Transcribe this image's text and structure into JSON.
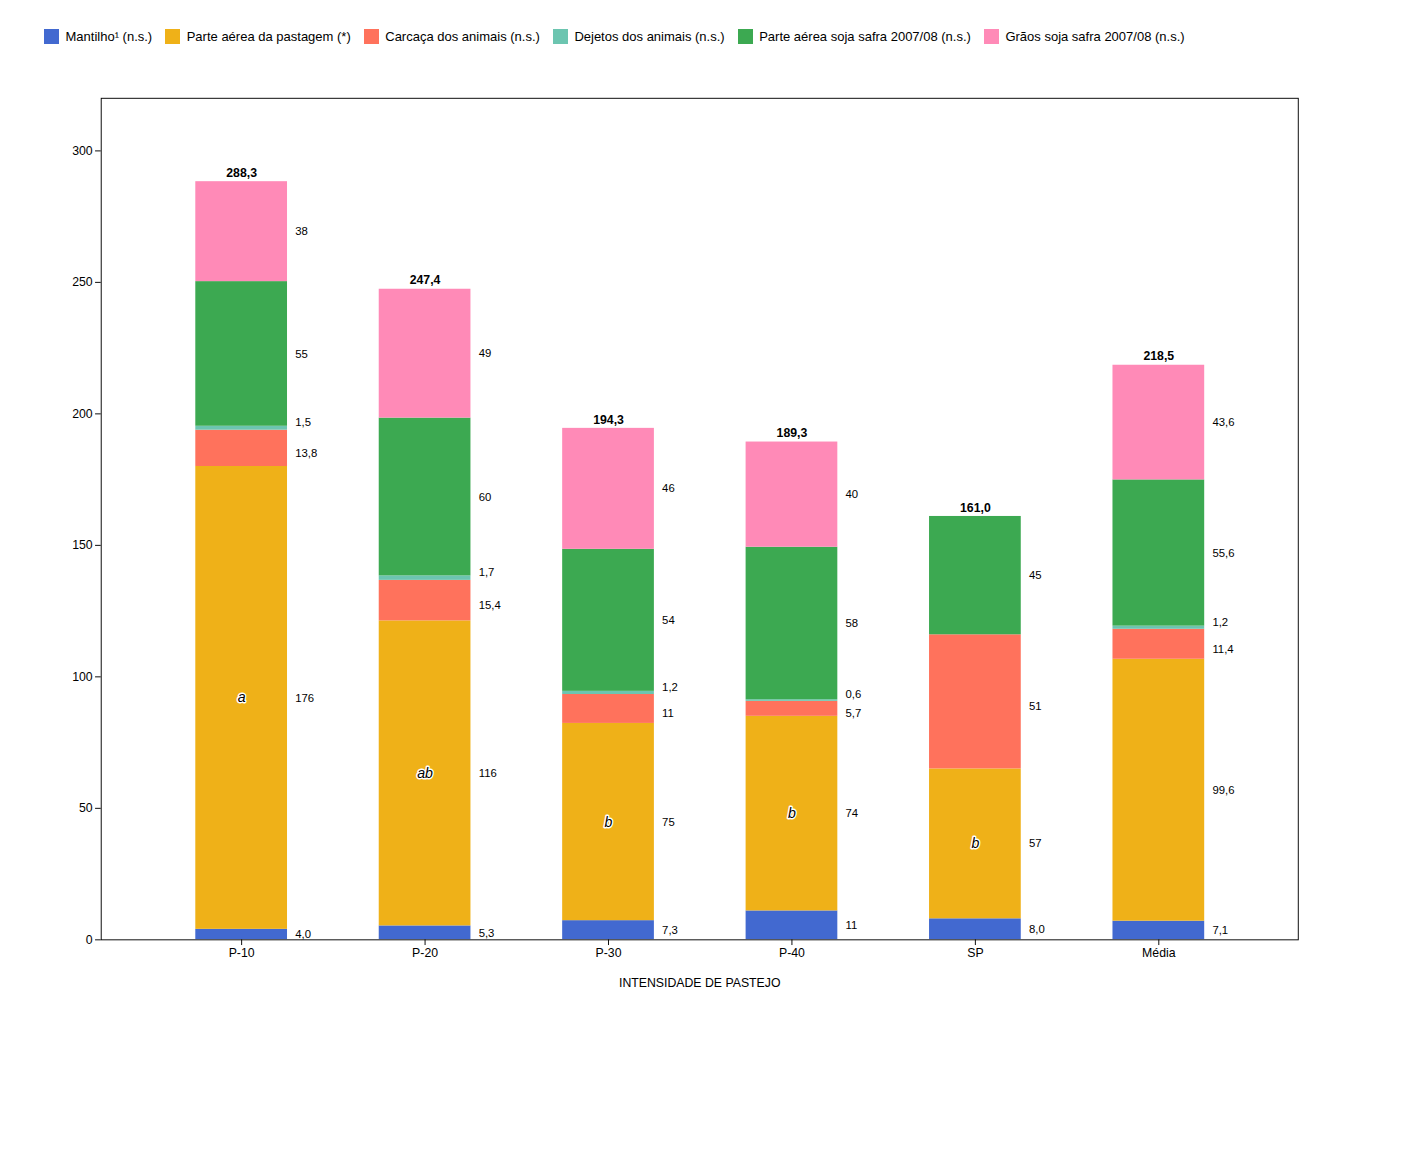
{
  "chart_data": {
    "type": "bar",
    "stacked": true,
    "data_labels": true,
    "grid": false,
    "xlabel": "INTENSIDADE DE PASTEJO",
    "categories": [
      "P-10",
      "P-20",
      "P-30",
      "P-40",
      "SP",
      "Média"
    ],
    "series": [
      {
        "name": "Mantilho¹ (n.s.)",
        "values": [
          4.0,
          5.3,
          7.3,
          11.0,
          8.0,
          7.1
        ],
        "value_labels": [
          "4,0",
          "5,3",
          "7,3",
          "11",
          "8,0",
          "7,1"
        ]
      },
      {
        "name": "Parte aérea da pastagem (*)",
        "values": [
          176.0,
          116.0,
          75.0,
          74.0,
          57.0,
          99.6
        ],
        "value_labels": [
          "176",
          "116",
          "75",
          "74",
          "57",
          "99,6"
        ],
        "inside_labels": [
          "a",
          "ab",
          "b",
          "b",
          "b",
          null
        ]
      },
      {
        "name": "Carcaça dos animais (n.s.)",
        "values": [
          13.8,
          15.4,
          11.0,
          5.7,
          51.0,
          11.4
        ],
        "value_labels": [
          "13,8",
          "15,4",
          "11",
          "5,7",
          "51",
          "11,4"
        ]
      },
      {
        "name": "Dejetos dos animais (n.s.)",
        "values": [
          1.5,
          1.7,
          1.2,
          0.6,
          0.0,
          1.2
        ],
        "value_labels": [
          "1,5",
          "1,7",
          "1,2",
          "0,6",
          null,
          "1,2"
        ]
      },
      {
        "name": "Parte aérea soja safra 2007/08 (n.s.)",
        "values": [
          55.0,
          60.0,
          54.0,
          58.0,
          45.0,
          55.6
        ],
        "value_labels": [
          "55",
          "60",
          "54",
          "58",
          "45",
          "55,6"
        ]
      },
      {
        "name": "Grãos soja safra 2007/08 (n.s.)",
        "values": [
          38.0,
          49.0,
          46.0,
          40.0,
          0.0,
          43.6
        ],
        "value_labels": [
          "38",
          "49",
          "46",
          "40",
          null,
          "43,6"
        ]
      }
    ],
    "totals": [
      288.3,
      247.4,
      194.3,
      189.3,
      161.0,
      218.5
    ],
    "total_labels": [
      "288,3",
      "247,4",
      "194,3",
      "189,3",
      "161,0",
      "218,5"
    ],
    "ylim": [
      0,
      320
    ],
    "yticks": [
      0,
      50,
      100,
      150,
      200,
      250,
      300
    ]
  }
}
